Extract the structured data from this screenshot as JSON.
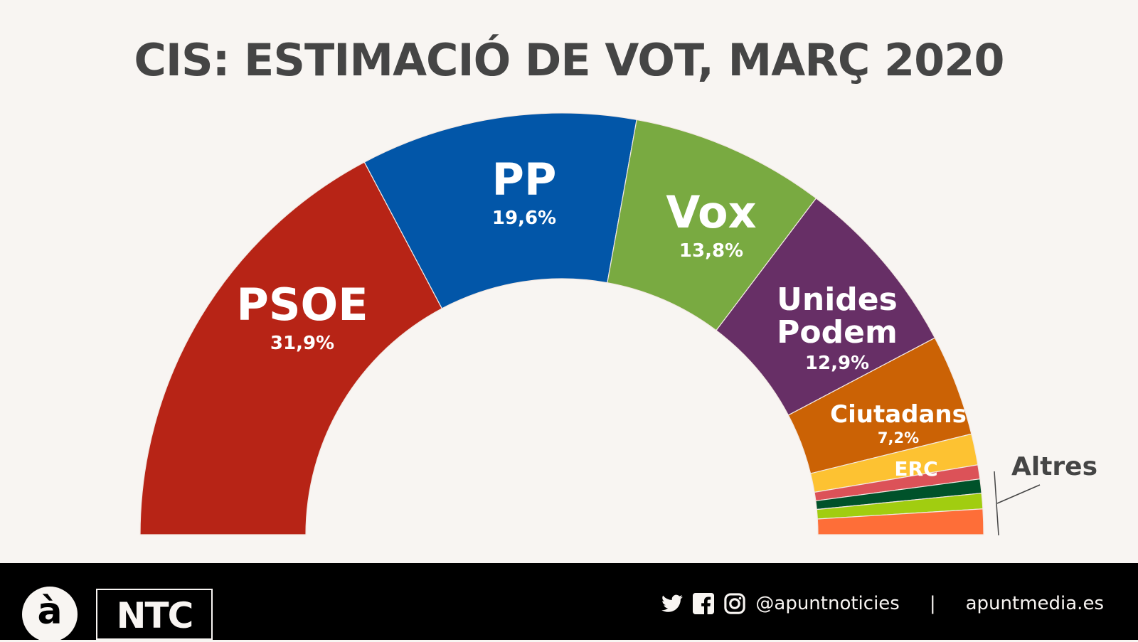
{
  "title": "CIS: ESTIMACIÓ DE VOT, MARÇ 2020",
  "chart_data": {
    "type": "pie",
    "subtype": "semicircle-donut (parliament hemicycle)",
    "title": "CIS: ESTIMACIÓ DE VOT, MARÇ 2020",
    "categories": [
      "PSOE",
      "PP",
      "Vox",
      "Unides Podem",
      "Ciutadans",
      "ERC",
      "Altres 1",
      "Altres 2",
      "Altres 3",
      "Altres 4"
    ],
    "values": [
      31.9,
      19.6,
      13.8,
      12.9,
      7.2,
      2.2,
      1.0,
      1.0,
      1.1,
      1.8
    ],
    "labels": [
      "31,9%",
      "19,6%",
      "13,8%",
      "12,9%",
      "7,2%",
      "",
      "",
      "",
      "",
      ""
    ],
    "colors": [
      "#b72416",
      "#0256a8",
      "#79aa41",
      "#672f66",
      "#cb6205",
      "#fdc232",
      "#dc5258",
      "#00522a",
      "#a1cd10",
      "#fe6e38"
    ],
    "group_annotation": "Altres",
    "note": "ERC and the Altres slices have no printed percentage; values estimated from slice angles"
  },
  "segments": [
    {
      "name": "PSOE",
      "pct": "31,9%"
    },
    {
      "name": "PP",
      "pct": "19,6%"
    },
    {
      "name": "Vox",
      "pct": "13,8%"
    },
    {
      "name_line1": "Unides",
      "name_line2": "Podem",
      "pct": "12,9%"
    },
    {
      "name": "Ciutadans",
      "pct": "7,2%"
    },
    {
      "name": "ERC"
    }
  ],
  "altres_label": "Altres",
  "footer": {
    "logo_a": "à",
    "logo_ntc": "NTC",
    "icons": [
      "twitter-icon",
      "facebook-icon",
      "instagram-icon"
    ],
    "handle": "@apuntnoticies",
    "separator": "|",
    "website": "apuntmedia.es"
  }
}
